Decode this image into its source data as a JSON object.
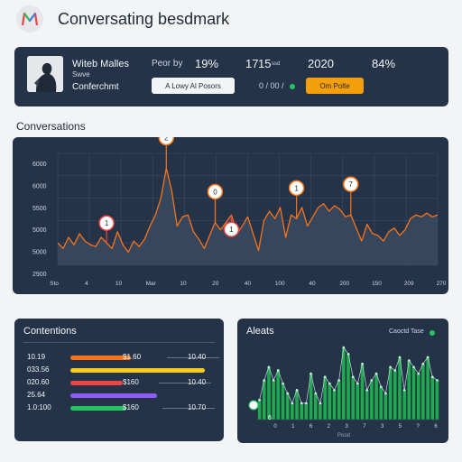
{
  "app": {
    "logo_text": "M",
    "title": "Conversating besdmark"
  },
  "profile": {
    "name": "Witeb Malles",
    "role": "Swve",
    "status": "Conferchmt",
    "pill_label": "A Lowy Al Posors",
    "stat1_label": "Peor by",
    "stat1_value": "19%",
    "stat2_value": "17",
    "stat2_suffix": "15",
    "stat2_unit": "ssd",
    "stat3_value": "2020",
    "stat4_value": "84%",
    "mini_stat": "0 / 00 /",
    "button_label": "Om Polte"
  },
  "conversations": {
    "title": "Conversations",
    "chart_data": {
      "type": "area",
      "y_ticks": [
        "6000",
        "6000",
        "5500",
        "5000",
        "5000",
        "2900"
      ],
      "x_ticks": [
        "Sto",
        "4",
        "10",
        "Mar",
        "10",
        "20",
        "40",
        "100",
        "40",
        "200",
        "150",
        "209",
        "270"
      ],
      "values": [
        12,
        9,
        15,
        11,
        17,
        13,
        11,
        10,
        15,
        12,
        9,
        18,
        11,
        7,
        13,
        10,
        14,
        21,
        27,
        36,
        52,
        40,
        21,
        26,
        27,
        18,
        14,
        9,
        16,
        23,
        19,
        23,
        27,
        17,
        21,
        26,
        17,
        8,
        24,
        29,
        25,
        31,
        15,
        27,
        25,
        31,
        21,
        26,
        31,
        33,
        29,
        32,
        30,
        26,
        27,
        20,
        13,
        22,
        17,
        16,
        13,
        18,
        20,
        16,
        19,
        25,
        27,
        26,
        28,
        26,
        27
      ],
      "markers": [
        {
          "label": "1",
          "index": 9,
          "color": "#ef4444"
        },
        {
          "label": "2",
          "index": 20,
          "color": "#f97316"
        },
        {
          "label": "0",
          "index": 29,
          "color": "#f97316"
        },
        {
          "label": "1",
          "index": 32,
          "color": "#ef4444"
        },
        {
          "label": "1",
          "index": 44,
          "color": "#f97316"
        },
        {
          "label": "7",
          "index": 54,
          "color": "#f97316"
        }
      ]
    }
  },
  "contentions": {
    "title": "Contentions",
    "rows": [
      {
        "label": "10.19",
        "value": "$1.60",
        "right": "10.40",
        "color": "#f97316",
        "fill": 0.28
      },
      {
        "label": "033.56",
        "value": "",
        "right": "",
        "color": "#facc15",
        "fill": 0.62
      },
      {
        "label": "020.60",
        "value": "$160",
        "right": "10.40",
        "color": "#ef4444",
        "fill": 0.24
      },
      {
        "label": "25.64",
        "value": "",
        "right": "",
        "color": "#8b5cf6",
        "fill": 0.4
      },
      {
        "label": "1.0:100",
        "value": "$160",
        "right": "10.70",
        "color": "#22c55e",
        "fill": 0.26
      }
    ]
  },
  "alerts": {
    "title": "Aleats",
    "legend": "Caoctd Tase",
    "xlabel": "Pood",
    "marker_label": "6",
    "chart_data": {
      "type": "bar",
      "x_ticks": [
        "0",
        "1",
        "6",
        "2",
        "3",
        "7",
        "3",
        "5",
        "?",
        "6"
      ],
      "values": [
        6,
        12,
        16,
        12,
        15,
        11,
        8,
        5,
        9,
        5,
        5,
        14,
        8,
        5,
        13,
        11,
        9,
        12,
        22,
        20,
        13,
        11,
        17,
        9,
        12,
        14,
        10,
        8,
        16,
        15,
        19,
        9,
        18,
        16,
        14,
        17,
        19,
        13,
        12
      ]
    }
  }
}
